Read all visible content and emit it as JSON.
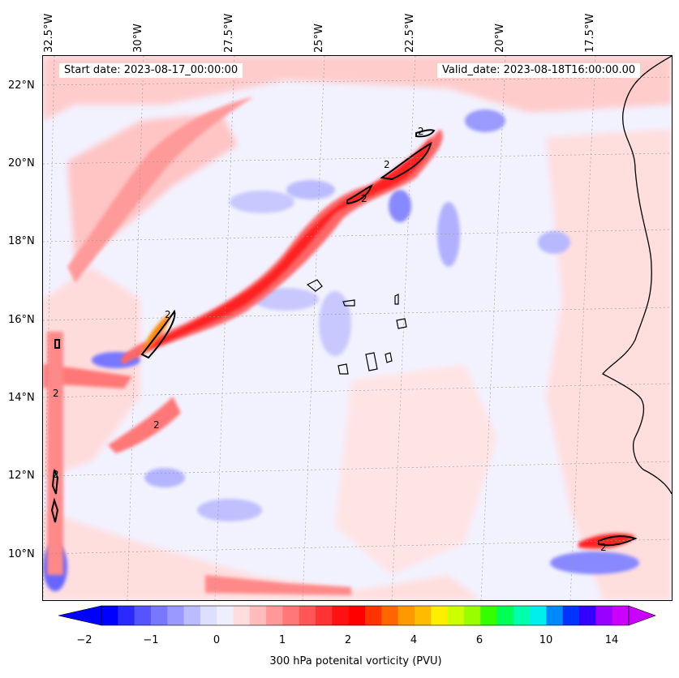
{
  "map": {
    "start_date": "Start date: 2023-08-17_00:00:00",
    "valid_date": "Valid_date: 2023-08-18T16:00:00.00",
    "contour_label": "2"
  },
  "longitude_labels": [
    "32.5°W",
    "30°W",
    "27.5°W",
    "25°W",
    "22.5°W",
    "20°W",
    "17.5°W"
  ],
  "latitude_labels": [
    "22°N",
    "20°N",
    "18°N",
    "16°N",
    "14°N",
    "12°N",
    "10°N"
  ],
  "colorbar": {
    "title": "300 hPa potenital vorticity (PVU)",
    "ticks": [
      "−2",
      "−1",
      "0",
      "1",
      "2",
      "4",
      "6",
      "10",
      "14"
    ],
    "colors": [
      "#0000ff",
      "#2a2aff",
      "#5555ff",
      "#7777ff",
      "#9999ff",
      "#bbbbff",
      "#dddfff",
      "#eeeeff",
      "#ffdddd",
      "#ffbbbb",
      "#ff9999",
      "#ff7777",
      "#ff5555",
      "#ff3333",
      "#ff1111",
      "#ff0000",
      "#ff3300",
      "#ff6600",
      "#ff9900",
      "#ffbb00",
      "#ffee00",
      "#ccff00",
      "#99ff00",
      "#33ff00",
      "#00ff55",
      "#00ffaa",
      "#00eeee",
      "#0088ff",
      "#0033ff",
      "#3300ff",
      "#9900ff",
      "#cc00ff"
    ],
    "under_color": "#0000ff",
    "over_color": "#cc00ff"
  }
}
